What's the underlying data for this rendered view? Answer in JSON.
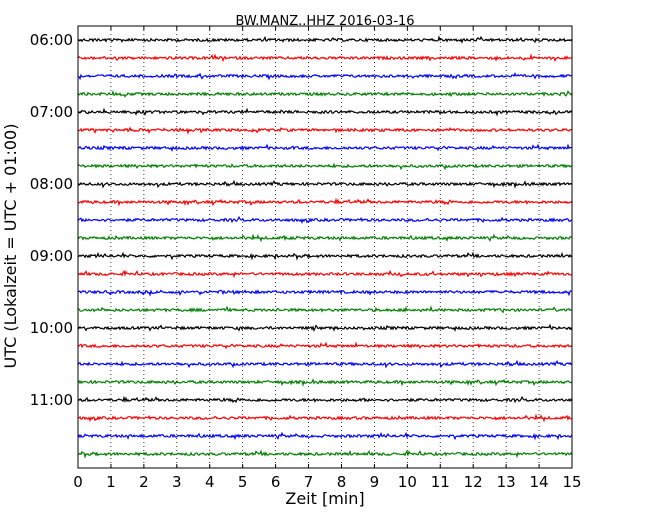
{
  "chart_data": {
    "type": "line",
    "title": "BW.MANZ..HHZ 2016-03-16",
    "xlabel": "Zeit  [min]",
    "ylabel": "UTC (Lokalzeit = UTC + 01:00)",
    "xlim": [
      0,
      15
    ],
    "x_ticks": [
      0,
      1,
      2,
      3,
      4,
      5,
      6,
      7,
      8,
      9,
      10,
      11,
      12,
      13,
      14,
      15
    ],
    "x_grid": true,
    "y_tick_labels": [
      "06:00",
      "07:00",
      "08:00",
      "09:00",
      "10:00",
      "11:00"
    ],
    "traces_per_hour": 4,
    "minutes_per_trace": 15,
    "trace_colors": [
      "#000000",
      "#ff0000",
      "#0000ff",
      "#008000"
    ],
    "series": [
      {
        "start": "06:00"
      },
      {
        "start": "06:15"
      },
      {
        "start": "06:30"
      },
      {
        "start": "06:45"
      },
      {
        "start": "07:00"
      },
      {
        "start": "07:15"
      },
      {
        "start": "07:30"
      },
      {
        "start": "07:45"
      },
      {
        "start": "08:00"
      },
      {
        "start": "08:15"
      },
      {
        "start": "08:30"
      },
      {
        "start": "08:45"
      },
      {
        "start": "09:00"
      },
      {
        "start": "09:15"
      },
      {
        "start": "09:30"
      },
      {
        "start": "09:45"
      },
      {
        "start": "10:00"
      },
      {
        "start": "10:15"
      },
      {
        "start": "10:30"
      },
      {
        "start": "10:45"
      },
      {
        "start": "11:00"
      },
      {
        "start": "11:15"
      },
      {
        "start": "11:30"
      },
      {
        "start": "11:45"
      }
    ]
  }
}
